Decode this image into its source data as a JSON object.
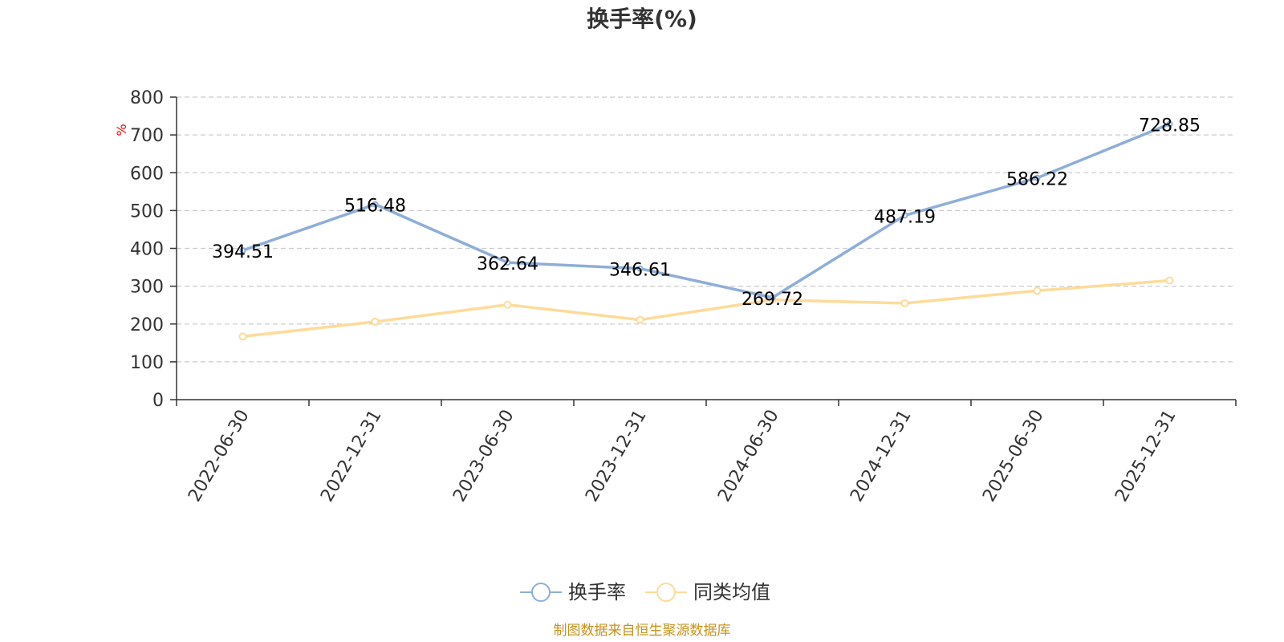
{
  "chart_data": {
    "type": "line",
    "title": "换手率(%)",
    "ylabel": "%",
    "xlabel": "",
    "categories": [
      "2022-06-30",
      "2022-12-31",
      "2023-06-30",
      "2023-12-31",
      "2024-06-30",
      "2024-12-31",
      "2025-06-30",
      "2025-12-31"
    ],
    "ylim": [
      0,
      800
    ],
    "yticks": [
      0,
      100,
      200,
      300,
      400,
      500,
      600,
      700,
      800
    ],
    "grid": true,
    "legend_position": "bottom-center",
    "series": [
      {
        "name": "换手率",
        "color": "#8eaed8",
        "values": [
          394.51,
          516.48,
          362.64,
          346.61,
          269.72,
          487.19,
          586.22,
          728.85
        ],
        "labels": [
          "394.51",
          "516.48",
          "362.64",
          "346.61",
          "269.72",
          "487.19",
          "586.22",
          "728.85"
        ]
      },
      {
        "name": "同类均值",
        "color": "#fddb9a",
        "values": [
          167,
          206,
          251,
          211,
          264,
          255,
          288,
          315
        ]
      }
    ]
  },
  "footer": {
    "source": "制图数据来自恒生聚源数据库"
  }
}
